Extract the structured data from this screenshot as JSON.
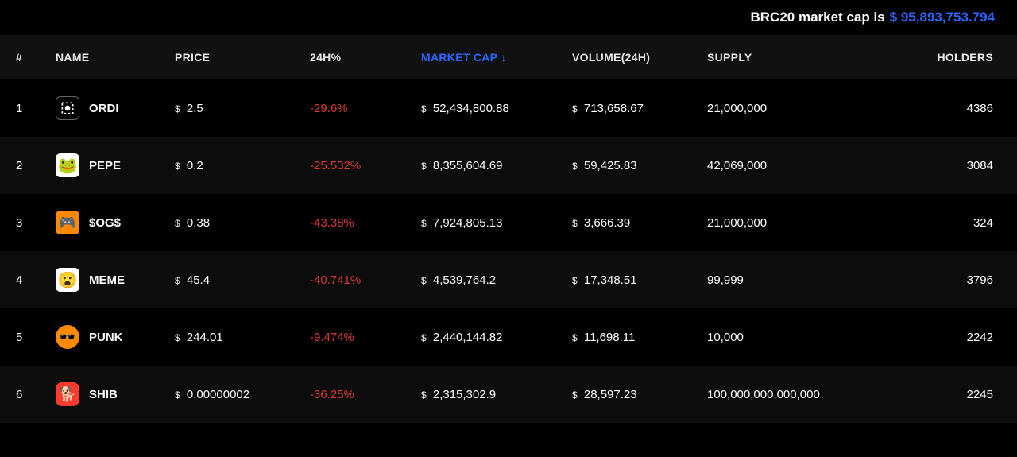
{
  "header": {
    "market_cap_label": "BRC20 market cap is",
    "market_cap_value": "$ 95,893,753.794"
  },
  "columns": {
    "num": "#",
    "name": "NAME",
    "price": "PRICE",
    "change24h": "24H%",
    "market_cap": "MARKET CAP",
    "volume": "VOLUME(24H)",
    "supply": "SUPPLY",
    "holders": "HOLDERS"
  },
  "sort": {
    "column": "market_cap",
    "direction": "desc",
    "arrow": "↓"
  },
  "colors": {
    "background": "#000000",
    "row_alt": "#0c0c0c",
    "header_bg": "#111111",
    "text": "#ffffff",
    "accent_blue": "#2a66ff",
    "negative": "#d83a3a",
    "border": "#2a2a2a"
  },
  "rows": [
    {
      "rank": "1",
      "icon_id": "ordi",
      "name": "ORDI",
      "price": "2.5",
      "change24h": "-29.6%",
      "market_cap": "52,434,800.88",
      "volume": "713,658.67",
      "supply": "21,000,000",
      "holders": "4386"
    },
    {
      "rank": "2",
      "icon_id": "pepe",
      "name": "PEPE",
      "price": "0.2",
      "change24h": "-25.532%",
      "market_cap": "8,355,604.69",
      "volume": "59,425.83",
      "supply": "42,069,000",
      "holders": "3084"
    },
    {
      "rank": "3",
      "icon_id": "og",
      "name": "$OG$",
      "price": "0.38",
      "change24h": "-43.38%",
      "market_cap": "7,924,805.13",
      "volume": "3,666.39",
      "supply": "21,000,000",
      "holders": "324"
    },
    {
      "rank": "4",
      "icon_id": "meme",
      "name": "MEME",
      "price": "45.4",
      "change24h": "-40.741%",
      "market_cap": "4,539,764.2",
      "volume": "17,348.51",
      "supply": "99,999",
      "holders": "3796"
    },
    {
      "rank": "5",
      "icon_id": "punk",
      "name": "PUNK",
      "price": "244.01",
      "change24h": "-9.474%",
      "market_cap": "2,440,144.82",
      "volume": "11,698.11",
      "supply": "10,000",
      "holders": "2242"
    },
    {
      "rank": "6",
      "icon_id": "shib",
      "name": "SHIB",
      "price": "0.00000002",
      "change24h": "-36.25%",
      "market_cap": "2,315,302.9",
      "volume": "28,597.23",
      "supply": "100,000,000,000,000",
      "holders": "2245"
    }
  ]
}
